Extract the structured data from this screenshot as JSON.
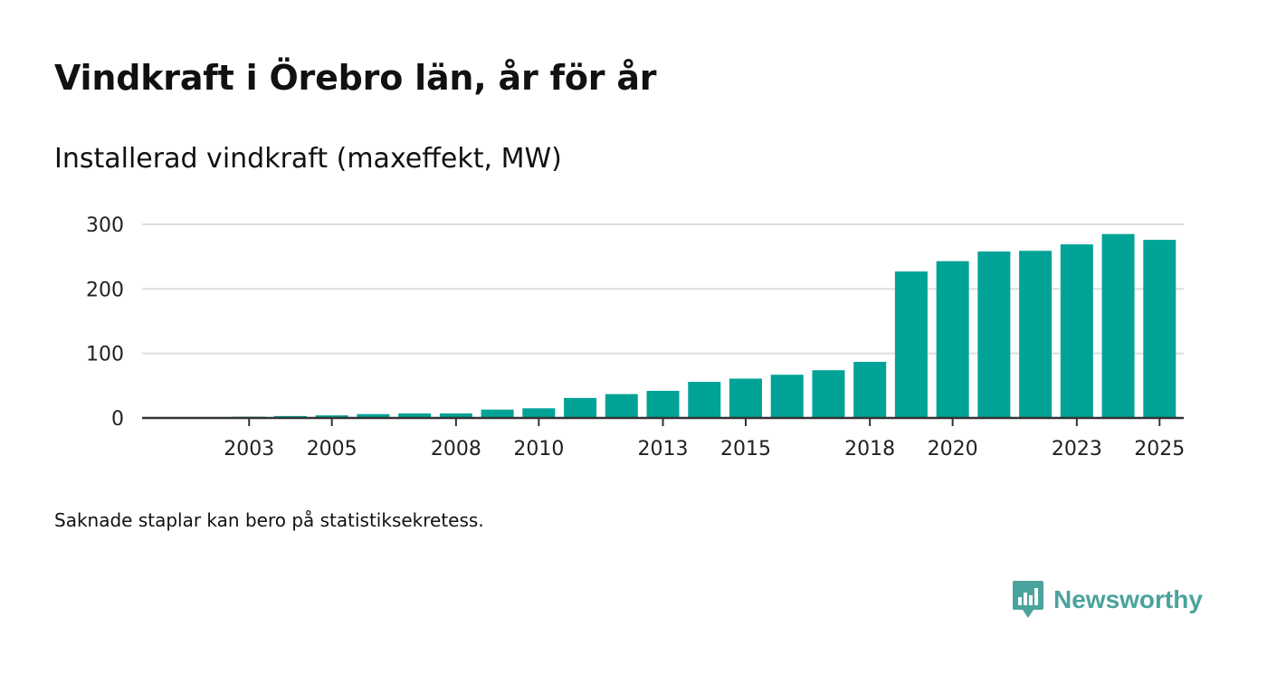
{
  "header": {
    "title": "Vindkraft i Örebro län, år för år",
    "subtitle": "Installerad vindkraft (maxeffekt, MW)"
  },
  "footer": {
    "note": "Saknade staplar kan bero på statistiksekretess.",
    "brand": "Newsworthy"
  },
  "colors": {
    "bar": "#00a396",
    "grid": "#dddddd",
    "axis": "#333333",
    "brand": "#4aa39c"
  },
  "chart_data": {
    "type": "bar",
    "title": "Vindkraft i Örebro län, år för år",
    "subtitle": "Installerad vindkraft (maxeffekt, MW)",
    "xlabel": "",
    "ylabel": "",
    "categories": [
      2002,
      2003,
      2004,
      2005,
      2006,
      2007,
      2008,
      2009,
      2010,
      2011,
      2012,
      2013,
      2014,
      2015,
      2016,
      2017,
      2018,
      2019,
      2020,
      2021,
      2022,
      2023,
      2024,
      2025
    ],
    "values": [
      1,
      2,
      3,
      4,
      6,
      7,
      7,
      13,
      15,
      31,
      37,
      42,
      56,
      61,
      67,
      74,
      87,
      227,
      243,
      258,
      259,
      269,
      285,
      276
    ],
    "x_tick_labels": [
      "2003",
      "2005",
      "2008",
      "2010",
      "2013",
      "2015",
      "2018",
      "2020",
      "2023",
      "2025"
    ],
    "y_ticks": [
      0,
      100,
      200,
      300
    ],
    "ylim": [
      0,
      300
    ],
    "grid": true,
    "legend": "none"
  }
}
